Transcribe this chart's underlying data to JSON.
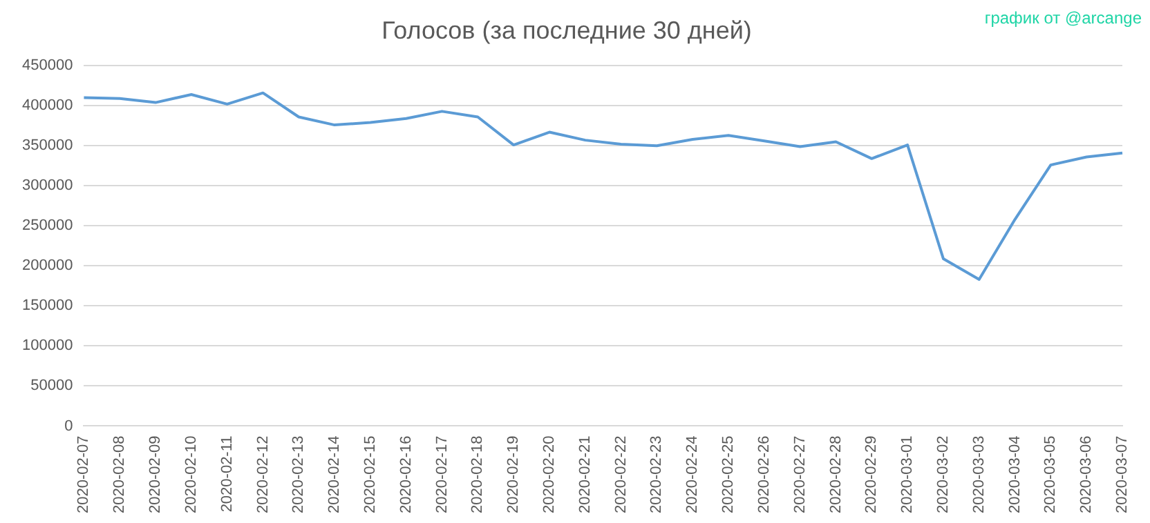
{
  "chart_data": {
    "type": "line",
    "title": "Голосов (за последние 30 дней)",
    "annotations": [
      "график от @arcange"
    ],
    "categories": [
      "2020-02-07",
      "2020-02-08",
      "2020-02-09",
      "2020-02-10",
      "2020-02-11",
      "2020-02-12",
      "2020-02-13",
      "2020-02-14",
      "2020-02-15",
      "2020-02-16",
      "2020-02-17",
      "2020-02-18",
      "2020-02-19",
      "2020-02-20",
      "2020-02-21",
      "2020-02-22",
      "2020-02-23",
      "2020-02-24",
      "2020-02-25",
      "2020-02-26",
      "2020-02-27",
      "2020-02-28",
      "2020-02-29",
      "2020-03-01",
      "2020-03-02",
      "2020-03-03",
      "2020-03-04",
      "2020-03-05",
      "2020-03-06",
      "2020-03-07"
    ],
    "series": [
      {
        "color": "#5b9bd5",
        "values": [
          410000,
          409000,
          404000,
          414000,
          402000,
          416000,
          386000,
          376000,
          379000,
          384000,
          393000,
          386000,
          351000,
          367000,
          357000,
          352000,
          350000,
          358000,
          363000,
          356000,
          349000,
          355000,
          334000,
          351000,
          209000,
          183000,
          258000,
          326000,
          336000,
          341000
        ]
      }
    ],
    "ylim": [
      0,
      450000
    ],
    "yticks": [
      0,
      50000,
      100000,
      150000,
      200000,
      250000,
      300000,
      350000,
      400000,
      450000
    ],
    "grid": "y",
    "legend": false,
    "marker": "none",
    "line_style": "solid"
  }
}
